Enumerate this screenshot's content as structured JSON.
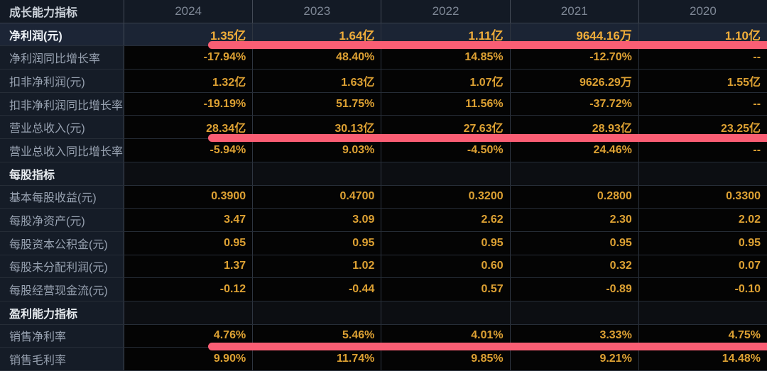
{
  "table": {
    "header": {
      "label": "成长能力指标",
      "years": [
        "2024",
        "2023",
        "2022",
        "2021",
        "2020"
      ]
    },
    "rows": [
      {
        "label": "净利润(元)",
        "values": [
          "1.35亿",
          "1.64亿",
          "1.11亿",
          "9644.16万",
          "1.10亿"
        ],
        "type": "highlight",
        "underline": true
      },
      {
        "label": "净利润同比增长率",
        "values": [
          "-17.94%",
          "48.40%",
          "14.85%",
          "-12.70%",
          "--"
        ],
        "type": "normal",
        "underline": false
      },
      {
        "label": "扣非净利润(元)",
        "values": [
          "1.32亿",
          "1.63亿",
          "1.07亿",
          "9626.29万",
          "1.55亿"
        ],
        "type": "normal",
        "underline": false
      },
      {
        "label": "扣非净利润同比增长率",
        "values": [
          "-19.19%",
          "51.75%",
          "11.56%",
          "-37.72%",
          "--"
        ],
        "type": "normal",
        "underline": false
      },
      {
        "label": "营业总收入(元)",
        "values": [
          "28.34亿",
          "30.13亿",
          "27.63亿",
          "28.93亿",
          "23.25亿"
        ],
        "type": "normal",
        "underline": true
      },
      {
        "label": "营业总收入同比增长率",
        "values": [
          "-5.94%",
          "9.03%",
          "-4.50%",
          "24.46%",
          "--"
        ],
        "type": "normal",
        "underline": false
      },
      {
        "label": "每股指标",
        "values": [
          "",
          "",
          "",
          "",
          ""
        ],
        "type": "section",
        "underline": false
      },
      {
        "label": "基本每股收益(元)",
        "values": [
          "0.3900",
          "0.4700",
          "0.3200",
          "0.2800",
          "0.3300"
        ],
        "type": "normal",
        "underline": false
      },
      {
        "label": "每股净资产(元)",
        "values": [
          "3.47",
          "3.09",
          "2.62",
          "2.30",
          "2.02"
        ],
        "type": "normal",
        "underline": false
      },
      {
        "label": "每股资本公积金(元)",
        "values": [
          "0.95",
          "0.95",
          "0.95",
          "0.95",
          "0.95"
        ],
        "type": "normal",
        "underline": false
      },
      {
        "label": "每股未分配利润(元)",
        "values": [
          "1.37",
          "1.02",
          "0.60",
          "0.32",
          "0.07"
        ],
        "type": "normal",
        "underline": false
      },
      {
        "label": "每股经营现金流(元)",
        "values": [
          "-0.12",
          "-0.44",
          "0.57",
          "-0.89",
          "-0.10"
        ],
        "type": "normal",
        "underline": false
      },
      {
        "label": "盈利能力指标",
        "values": [
          "",
          "",
          "",
          "",
          ""
        ],
        "type": "section",
        "underline": false
      },
      {
        "label": "销售净利率",
        "values": [
          "4.76%",
          "5.46%",
          "4.01%",
          "3.33%",
          "4.75%"
        ],
        "type": "normal",
        "underline": true
      },
      {
        "label": "销售毛利率",
        "values": [
          "9.90%",
          "11.74%",
          "9.85%",
          "9.21%",
          "14.48%"
        ],
        "type": "normal",
        "underline": false
      }
    ],
    "colors": {
      "value_gold": "#dda133",
      "highlight_value_gold": "#f0ad3a",
      "marker_pink": "#fa5e74",
      "label_gray": "#97a1b0",
      "section_white": "#e7ebef",
      "header_bg": "#131a25",
      "label_col_bg": "#151c27",
      "highlight_row_bg": "#1b2434",
      "data_cell_bg": "#040404"
    }
  }
}
